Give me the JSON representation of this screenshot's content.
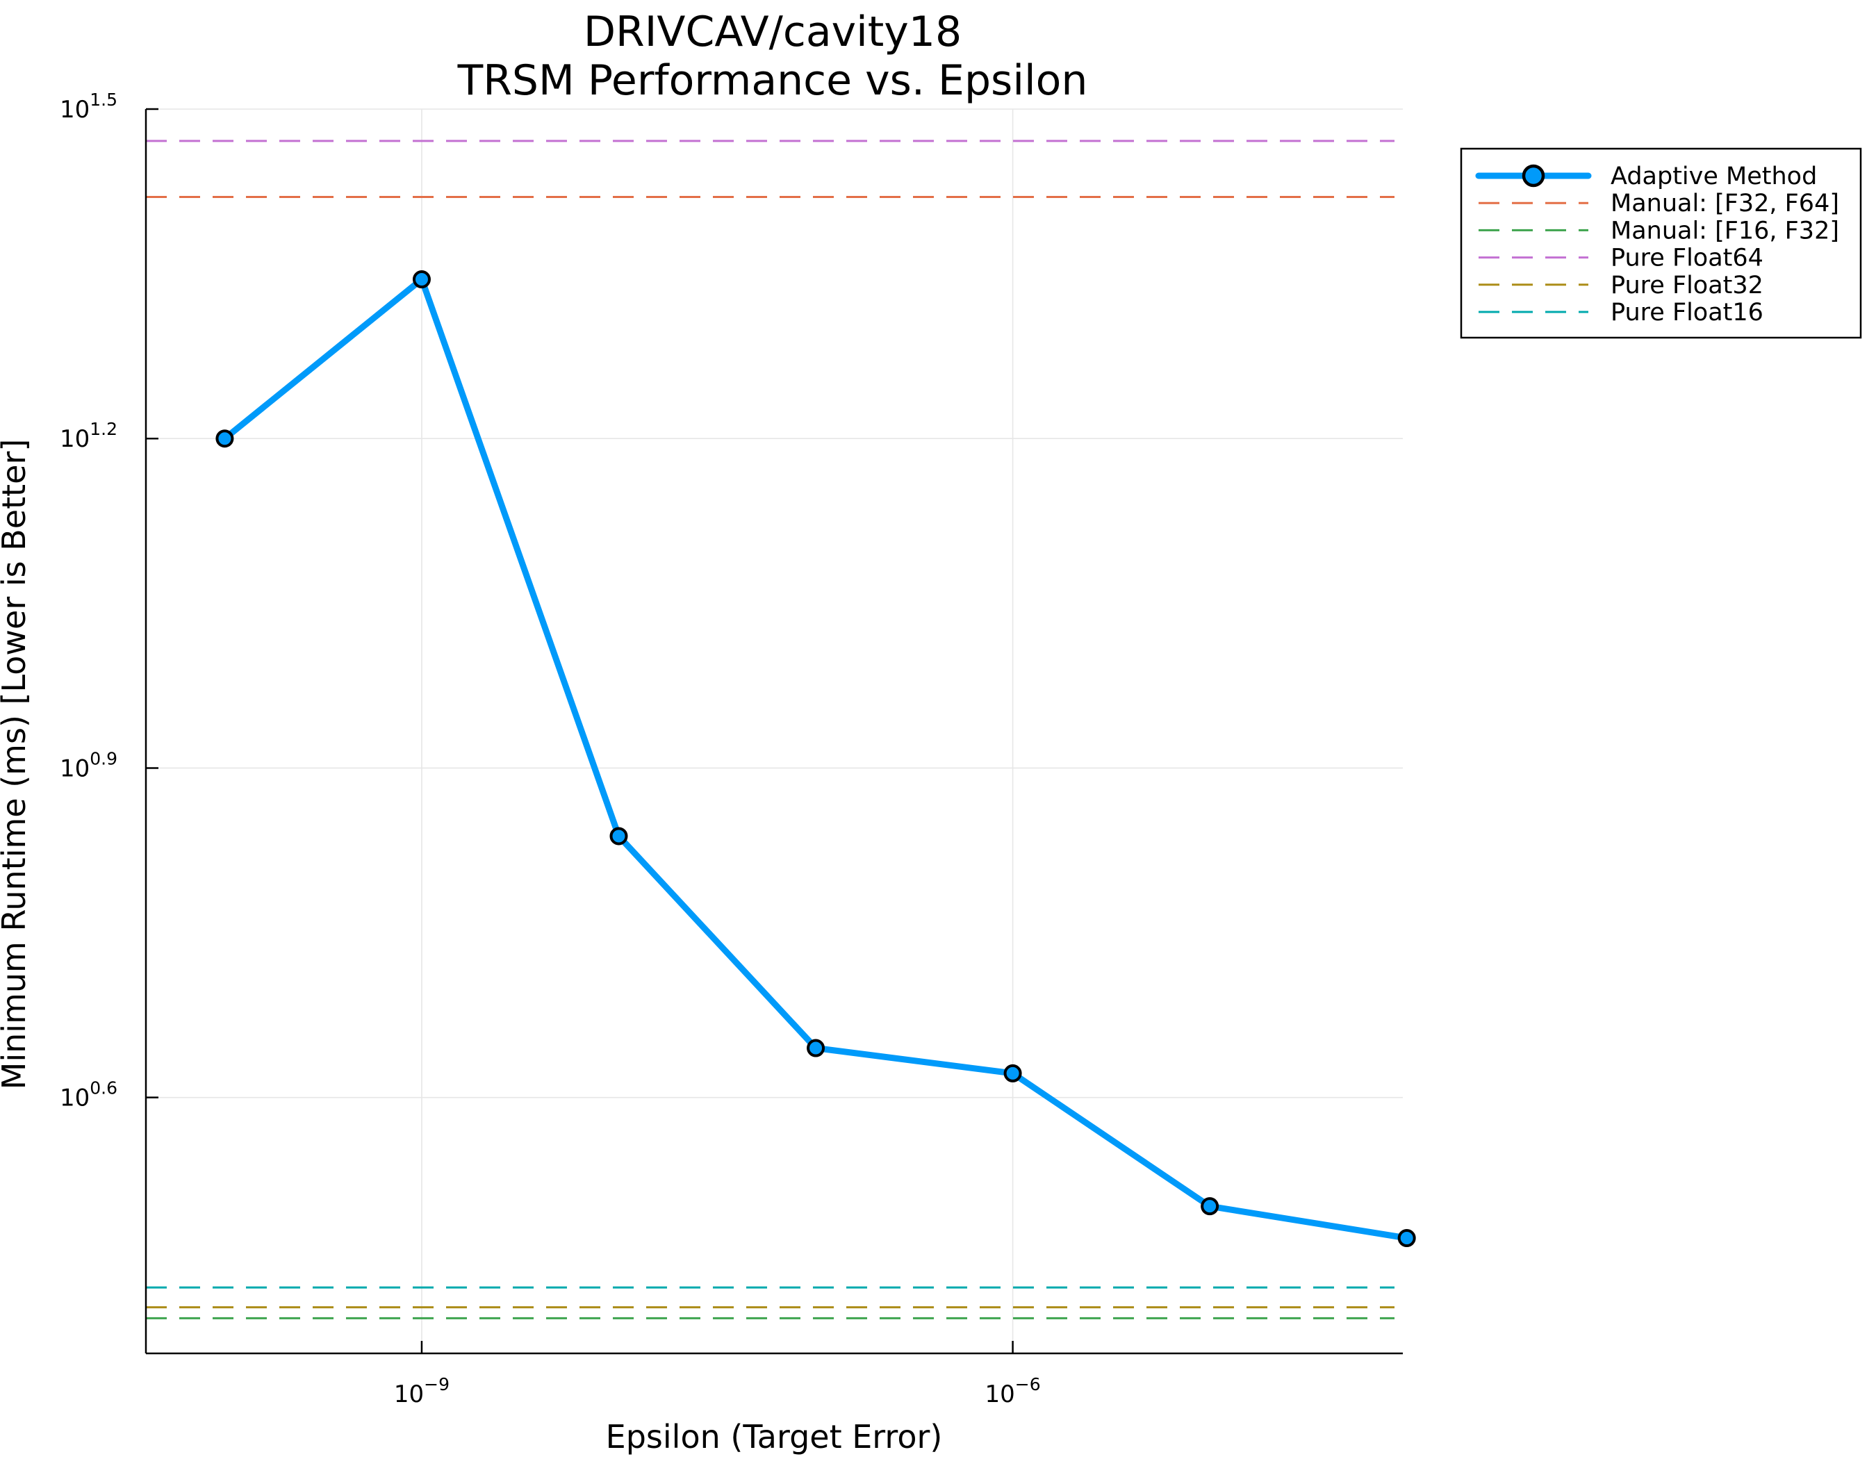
{
  "chart_data": {
    "type": "line",
    "title_lines": [
      "DRIVCAV/cavity18",
      "TRSM Performance vs. Epsilon"
    ],
    "xlabel": "Epsilon (Target Error)",
    "ylabel": "Minimum Runtime (ms) [Lower is Better]",
    "x_scale": "log10",
    "y_scale": "log10",
    "x_exp_range": [
      -10.4,
      -4.02
    ],
    "y_exp_range": [
      0.367,
      1.5
    ],
    "x_ticks": [
      {
        "exp": -9,
        "base": "10",
        "sup": "−9"
      },
      {
        "exp": -6,
        "base": "10",
        "sup": "−6"
      }
    ],
    "y_ticks": [
      {
        "exp": 0.6,
        "base": "10",
        "sup": "0.6"
      },
      {
        "exp": 0.9,
        "base": "10",
        "sup": "0.9"
      },
      {
        "exp": 1.2,
        "base": "10",
        "sup": "1.2"
      },
      {
        "exp": 1.5,
        "base": "10",
        "sup": "1.5"
      }
    ],
    "grid": true,
    "legend_position": "outside-top-right",
    "series": [
      {
        "name": "Adaptive Method",
        "color": "#009AFA",
        "style": "solid-marker",
        "x_exp": [
          -10.0,
          -9.0,
          -8.0,
          -7.0,
          -6.0,
          -5.0,
          -4.0
        ],
        "y_exp": [
          1.2,
          1.345,
          0.838,
          0.645,
          0.622,
          0.501,
          0.472
        ]
      },
      {
        "name": "Manual: [F32, F64]",
        "color": "#E36F47",
        "style": "dashed",
        "y_exp": 1.42
      },
      {
        "name": "Manual: [F16, F32]",
        "color": "#3EA44E",
        "style": "dashed",
        "y_exp": 0.399
      },
      {
        "name": "Pure Float64",
        "color": "#C371D2",
        "style": "dashed",
        "y_exp": 1.471
      },
      {
        "name": "Pure Float32",
        "color": "#AC8D18",
        "style": "dashed",
        "y_exp": 0.409
      },
      {
        "name": "Pure Float16",
        "color": "#00A9AD",
        "style": "dashed",
        "y_exp": 0.427
      }
    ]
  }
}
